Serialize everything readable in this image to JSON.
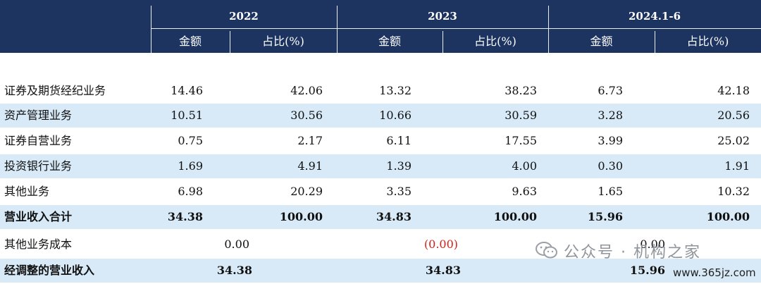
{
  "header": {
    "years": [
      "2022",
      "2023",
      "2024.1-6"
    ],
    "col_amount": "金额",
    "col_share": "占比(%)"
  },
  "rows": [
    {
      "label": "证券及期货经纪业务",
      "v": [
        "14.46",
        "42.06",
        "13.32",
        "38.23",
        "6.73",
        "42.18"
      ]
    },
    {
      "label": "资产管理业务",
      "v": [
        "10.51",
        "30.56",
        "10.66",
        "30.59",
        "3.28",
        "20.56"
      ]
    },
    {
      "label": "证券自营业务",
      "v": [
        "0.75",
        "2.17",
        "6.11",
        "17.55",
        "3.99",
        "25.02"
      ]
    },
    {
      "label": "投资银行业务",
      "v": [
        "1.69",
        "4.91",
        "1.39",
        "4.00",
        "0.30",
        "1.91"
      ]
    },
    {
      "label": "其他业务",
      "v": [
        "6.98",
        "20.29",
        "3.35",
        "9.63",
        "1.65",
        "10.32"
      ]
    },
    {
      "label": "营业收入合计",
      "v": [
        "34.38",
        "100.00",
        "34.83",
        "100.00",
        "15.96",
        "100.00"
      ]
    }
  ],
  "other_cost": {
    "label": "其他业务成本",
    "v": [
      "0.00",
      "(0.00)",
      "0.00"
    ]
  },
  "adjusted": {
    "label": "经调整的营业收入",
    "v": [
      "34.38",
      "34.83",
      "15.96"
    ]
  },
  "watermark": {
    "text": "公众号 · 机构之家",
    "site": "www.365jz.com"
  },
  "colors": {
    "header_bg": "#1d3461",
    "band": "#d8eaf7",
    "negative": "#d4211c"
  }
}
